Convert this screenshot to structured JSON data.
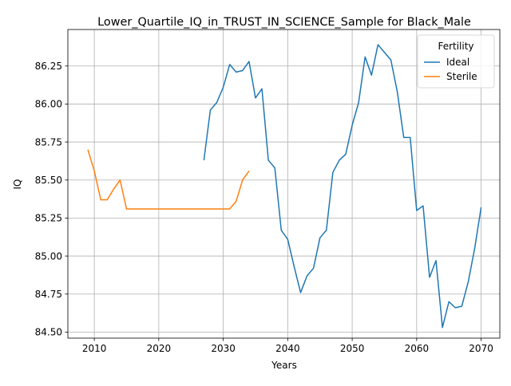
{
  "chart_data": {
    "type": "line",
    "title": "Lower_Quartile_IQ_in_TRUST_IN_SCIENCE_Sample for Black_Male",
    "xlabel": "Years",
    "ylabel": "IQ",
    "xlim": [
      2005.9,
      2072.9
    ],
    "ylim": [
      84.46,
      86.49
    ],
    "xticks": [
      2010,
      2020,
      2030,
      2040,
      2050,
      2060,
      2070
    ],
    "yticks": [
      84.5,
      84.75,
      85.0,
      85.25,
      85.5,
      85.75,
      86.0,
      86.25
    ],
    "ytick_labels": [
      "84.50",
      "84.75",
      "85.00",
      "85.25",
      "85.50",
      "85.75",
      "86.00",
      "86.25"
    ],
    "grid": true,
    "legend": {
      "title": "Fertility",
      "placement": "top-right"
    },
    "series": [
      {
        "name": "Ideal",
        "color": "#1f77b4",
        "x": [
          2027,
          2028,
          2029,
          2030,
          2031,
          2032,
          2033,
          2034,
          2035,
          2036,
          2037,
          2038,
          2039,
          2040,
          2041,
          2042,
          2043,
          2044,
          2045,
          2046,
          2047,
          2048,
          2049,
          2050,
          2051,
          2052,
          2053,
          2054,
          2055,
          2056,
          2057,
          2058,
          2059,
          2060,
          2061,
          2062,
          2063,
          2064,
          2065,
          2066,
          2067,
          2068,
          2069,
          2070
        ],
        "y": [
          85.63,
          85.96,
          86.01,
          86.11,
          86.26,
          86.21,
          86.22,
          86.28,
          86.04,
          86.1,
          85.63,
          85.58,
          85.17,
          85.11,
          84.93,
          84.76,
          84.87,
          84.92,
          85.12,
          85.17,
          85.55,
          85.63,
          85.67,
          85.86,
          86.01,
          86.31,
          86.19,
          86.39,
          86.34,
          86.29,
          86.08,
          85.78,
          85.78,
          85.3,
          85.33,
          84.86,
          84.97,
          84.53,
          84.7,
          84.66,
          84.67,
          84.83,
          85.05,
          85.32
        ]
      },
      {
        "name": "Sterile",
        "color": "#ff7f0e",
        "x": [
          2009,
          2010,
          2011,
          2012,
          2013,
          2014,
          2015,
          2016,
          2017,
          2018,
          2019,
          2020,
          2021,
          2022,
          2023,
          2024,
          2025,
          2026,
          2027,
          2028,
          2029,
          2030,
          2031,
          2032,
          2033,
          2034
        ],
        "y": [
          85.7,
          85.56,
          85.37,
          85.37,
          85.44,
          85.5,
          85.31,
          85.31,
          85.31,
          85.31,
          85.31,
          85.31,
          85.31,
          85.31,
          85.31,
          85.31,
          85.31,
          85.31,
          85.31,
          85.31,
          85.31,
          85.31,
          85.31,
          85.36,
          85.5,
          85.56
        ]
      }
    ]
  }
}
